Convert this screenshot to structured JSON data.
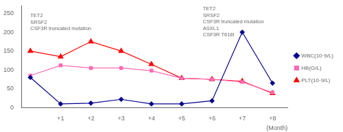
{
  "chart_data": {
    "type": "line",
    "x": [
      0,
      1,
      2,
      3,
      4,
      5,
      6,
      7,
      8
    ],
    "series": [
      {
        "name": "WBC(10·9/L)",
        "color": "#00008B",
        "marker": "diamond",
        "values": [
          80,
          10,
          12,
          22,
          10,
          10,
          18,
          200,
          65
        ]
      },
      {
        "name": "HB(G/L)",
        "color": "#FF69B4",
        "marker": "square",
        "values": [
          85,
          112,
          105,
          105,
          98,
          78,
          75,
          68,
          40
        ]
      },
      {
        "name": "PLT(10·9/L)",
        "color": "#FF0000",
        "marker": "triangle",
        "values": [
          150,
          135,
          175,
          150,
          115,
          78,
          75,
          70,
          38
        ]
      }
    ],
    "xlim": [
      -0.3,
      8.5
    ],
    "xticks": [
      {
        "value": 1,
        "label": "+1"
      },
      {
        "value": 2,
        "label": "+2"
      },
      {
        "value": 3,
        "label": "+3"
      },
      {
        "value": 4,
        "label": "+4"
      },
      {
        "value": 5,
        "label": "+5"
      },
      {
        "value": 6,
        "label": "+6"
      },
      {
        "value": 7,
        "label": "+7"
      },
      {
        "value": 8,
        "label": "+8"
      }
    ],
    "ylim": [
      0,
      270
    ],
    "yticks": [
      0,
      50,
      100,
      150,
      200,
      250
    ],
    "xlabel": "(Month)",
    "annotations": [
      {
        "text": "TET2\nSRSF2\nCSF3R truncated mutation",
        "x": 0,
        "y": 250
      },
      {
        "text": "TET2\nSRSF2\nCSF3R truncated mutation\nASXL1\nCSF3R T618I",
        "x": 5.7,
        "y": 268
      }
    ],
    "grid": false,
    "legend": "right"
  }
}
